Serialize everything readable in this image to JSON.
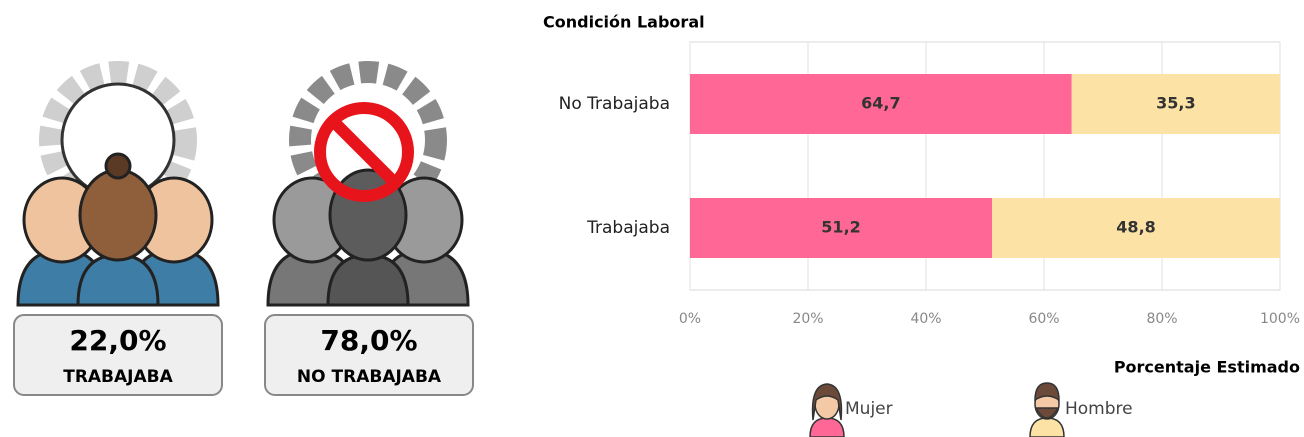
{
  "cards": [
    {
      "value_text": "22,0%",
      "caption": "TRABAJABA"
    },
    {
      "value_text": "78,0%",
      "caption": "NO TRABAJABA"
    }
  ],
  "chart_data": {
    "type": "stacked-bar-horizontal",
    "title": "Condición Laboral",
    "xlabel": "Porcentaje Estimado",
    "categories": [
      "No Trabajaba",
      "Trabajaba"
    ],
    "series": [
      {
        "name": "Mujer",
        "color": "#ff6896",
        "values": [
          64.7,
          51.2
        ],
        "value_labels": [
          "64,7",
          "51,2"
        ]
      },
      {
        "name": "Hombre",
        "color": "#fde2a6",
        "values": [
          35.3,
          48.8
        ],
        "value_labels": [
          "35,3",
          "48,8"
        ]
      }
    ],
    "xlim": [
      0,
      100
    ],
    "xticks": [
      {
        "value": 0,
        "label": "0%"
      },
      {
        "value": 20,
        "label": "20%"
      },
      {
        "value": 40,
        "label": "40%"
      },
      {
        "value": 60,
        "label": "60%"
      },
      {
        "value": 80,
        "label": "80%"
      },
      {
        "value": 100,
        "label": "100%"
      }
    ],
    "grid": true,
    "legend": "bottom"
  }
}
